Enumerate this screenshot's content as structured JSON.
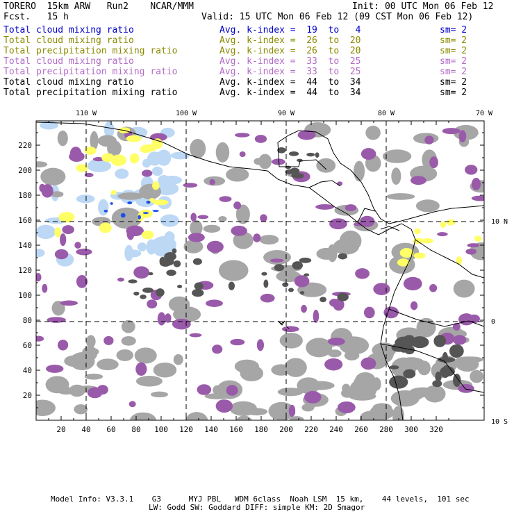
{
  "header": {
    "model": "TORERO  15km ARW   Run2    NCAR/MMM",
    "init": "Init: 00 UTC Mon 06 Feb 12",
    "fcst": "Fcst.   15 h",
    "valid": "Valid: 15 UTC Mon 06 Feb 12 (09 CST Mon 06 Feb 12)"
  },
  "legend": [
    {
      "field": "Total cloud mixing ratio",
      "index": "Avg. k-index =  19  to   4",
      "sm": "sm= 2",
      "color": "#0000cc"
    },
    {
      "field": "Total cloud mixing ratio",
      "index": "Avg. k-index =  26  to  20",
      "sm": "sm= 2",
      "color": "#8a8a00"
    },
    {
      "field": "Total precipitation mixing ratio",
      "index": "Avg. k-index =  26  to  20",
      "sm": "sm= 2",
      "color": "#8a8a00"
    },
    {
      "field": "Total cloud mixing ratio",
      "index": "Avg. k-index =  33  to  25",
      "sm": "sm= 2",
      "color": "#b36bc8"
    },
    {
      "field": "Total precipitation mixing ratio",
      "index": "Avg. k-index =  33  to  25",
      "sm": "sm= 2",
      "color": "#b36bc8"
    },
    {
      "field": "Total cloud mixing ratio",
      "index": "Avg. k-index =  44  to  34",
      "sm": "sm= 2",
      "color": "#000000"
    },
    {
      "field": "Total precipitation mixing ratio",
      "index": "Avg. k-index =  44  to  34",
      "sm": "sm= 2",
      "color": "#000000"
    }
  ],
  "axes": {
    "lon_labels": [
      "110 W",
      "100 W",
      "90 W",
      "80 W",
      "70 W"
    ],
    "lat_labels": [
      "10 N",
      "0",
      "10 S"
    ],
    "x_ticks": [
      "20",
      "40",
      "60",
      "80",
      "100",
      "120",
      "140",
      "160",
      "180",
      "200",
      "220",
      "240",
      "260",
      "280",
      "300",
      "320"
    ],
    "y_ticks": [
      "20",
      "40",
      "60",
      "80",
      "100",
      "120",
      "140",
      "160",
      "180",
      "200",
      "220"
    ]
  },
  "colors": {
    "ocean": "#ffffff",
    "gray": "#a6a6a6",
    "dark_gray": "#555555",
    "purple": "#9a5aaa",
    "yellow": "#ffff66",
    "light_blue": "#bcd8f5",
    "blue": "#1e50e6",
    "coast": "#000000"
  },
  "footer": {
    "line1": "Model Info: V3.3.1    G3      MYJ PBL   WDM 6class  Noah LSM  15 km,    44 levels,  101 sec",
    "line2": "LW: Godd SW: Goddard DIFF: simple KM: 2D Smagor"
  }
}
